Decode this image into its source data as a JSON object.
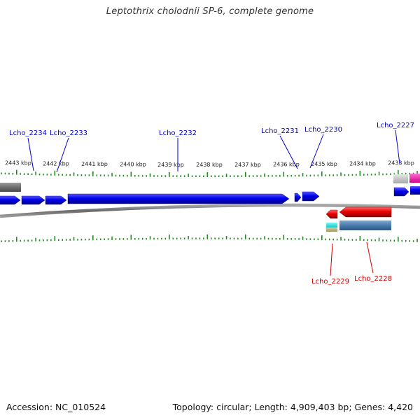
{
  "title": "Leptothrix cholodnii SP-6, complete genome",
  "footer": {
    "accession": "Accession: NC_010524",
    "topology": "Topology: circular; Length: 4,909,403 bp; Genes: 4,420"
  },
  "colors": {
    "forward_cds": "#0000ee",
    "reverse_cds": "#ee0000",
    "backbone": "#777777",
    "ticks": "#228B22",
    "label_forward": "#0000cc",
    "label_reverse": "#cc0000"
  },
  "ruler_labels": [
    "2443 kbp",
    "2442 kbp",
    "2441 kbp",
    "2440 kbp",
    "2439 kbp",
    "2438 kbp",
    "2437 kbp",
    "2436 kbp",
    "2435 kbp",
    "2434 kbp",
    "2433 kbp"
  ],
  "gene_labels": {
    "forward": [
      "Lcho_2234",
      "Lcho_2233",
      "Lcho_2232",
      "Lcho_2231",
      "Lcho_2230",
      "Lcho_2227"
    ],
    "reverse": [
      "Lcho_2229",
      "Lcho_2228"
    ]
  }
}
